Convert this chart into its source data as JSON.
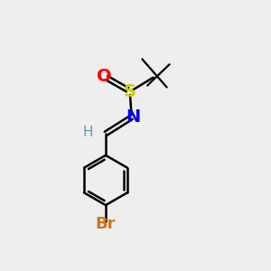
{
  "background_color": "#eeeeee",
  "atom_colors": {
    "O": "#ff0000",
    "S": "#cccc00",
    "N": "#0000ee",
    "H": "#6699aa",
    "Br": "#cc7722",
    "C": "#000000"
  },
  "layout": {
    "figsize": [
      3.0,
      3.0
    ],
    "dpi": 100,
    "xlim": [
      0,
      1
    ],
    "ylim": [
      0,
      1
    ]
  }
}
